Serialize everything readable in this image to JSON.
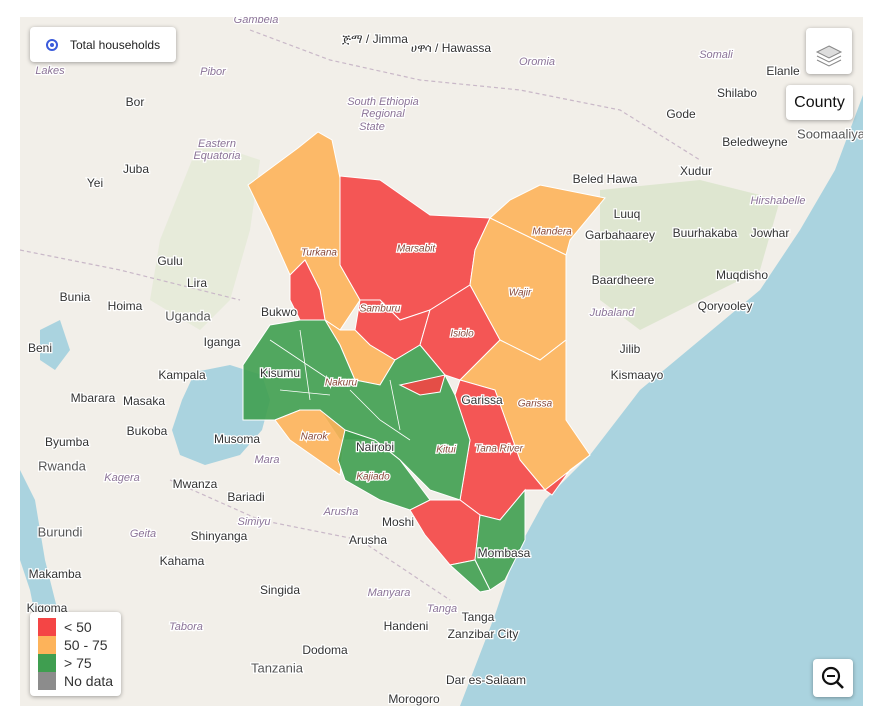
{
  "controls": {
    "layer_option": "Total households",
    "layer_button": "County"
  },
  "legend": {
    "items": [
      {
        "label": "< 50",
        "color": "#f44545"
      },
      {
        "label": "50 - 75",
        "color": "#fdb35a"
      },
      {
        "label": "> 75",
        "color": "#3f9e50"
      },
      {
        "label": "No data",
        "color": "#8c8c8c"
      }
    ]
  },
  "map_labels": [
    "Juba",
    "Yei",
    "Bor",
    "Lakes",
    "Pibor",
    "Eastern",
    "Equatoria",
    "Gambela",
    "Gulu",
    "Lira",
    "Uganda",
    "Bunia",
    "Hoima",
    "Iganga",
    "Bukwo",
    "Beni",
    "Kampala",
    "Mbarara",
    "Masaka",
    "Bukoba",
    "Musoma",
    "Byumba",
    "Rwanda",
    "Kagera",
    "Mwanza",
    "Mara",
    "Bariadi",
    "Burundi",
    "Geita",
    "Simiyu",
    "Shinyanga",
    "Kahama",
    "Makamba",
    "Arusha",
    "Arusha",
    "Moshi",
    "Manyara",
    "Singida",
    "Tabora",
    "Kigoma",
    "Tanga",
    "Tanga",
    "Handeni",
    "Zanzibar City",
    "Dodoma",
    "Tanzania",
    "Dar es-Salaam",
    "Morogoro",
    "ጅማ / Jimma",
    "ሀዋሳ / Hawassa",
    "Oromia",
    "South Ethiopia",
    "Regional",
    "State",
    "Somali",
    "Elanle",
    "Shilabo",
    "Gode",
    "Beledweyne",
    "Soomaaliya",
    "Beled Hawa",
    "Xudur",
    "Luuq",
    "Hirshabelle",
    "Garbahaarey",
    "Buurhakaba",
    "Jowhar",
    "Muqdisho",
    "Baardheere",
    "Qoryooley",
    "Jubaland",
    "Jilib",
    "Kismaayo",
    "Turkana",
    "Marsabit",
    "Mandera",
    "Wajir",
    "Samburu",
    "Isiolo",
    "Garissa",
    "Garissa",
    "Tana River",
    "Kitui",
    "Nairobi",
    "Kajiado",
    "Narok",
    "Nakuru",
    "Kisumu",
    "Mombasa"
  ]
}
